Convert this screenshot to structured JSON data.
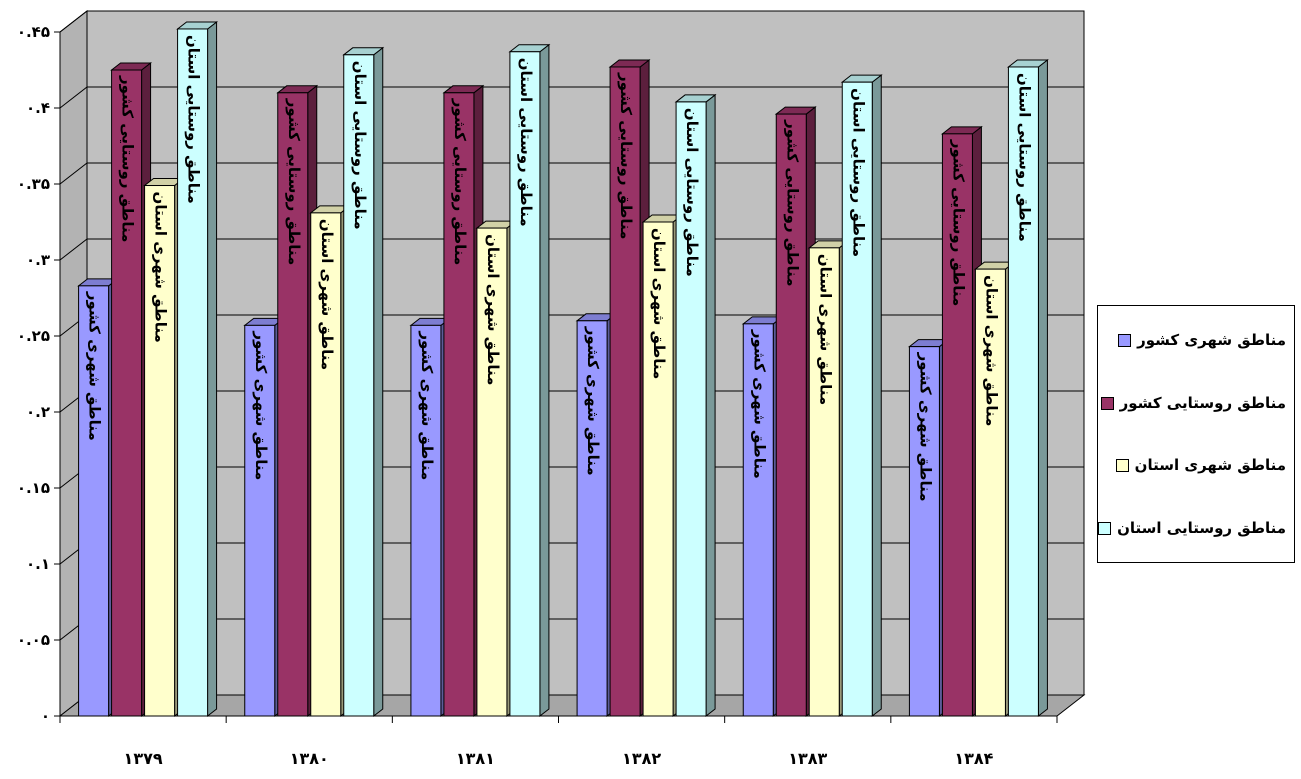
{
  "chart_data": {
    "type": "bar",
    "title": "",
    "xlabel": "",
    "ylabel": "",
    "categories": [
      "۱۳۷۹",
      "۱۳۸۰",
      "۱۳۸۱",
      "۱۳۸۲",
      "۱۳۸۳",
      "۱۳۸۴"
    ],
    "ylim": [
      0,
      0.45
    ],
    "yticks": [
      0,
      0.05,
      0.1,
      0.15,
      0.2,
      0.25,
      0.3,
      0.35,
      0.4,
      0.45
    ],
    "ytick_labels": [
      "۰",
      "۰.۰۵",
      "۰.۱",
      "۰.۱۵",
      "۰.۲",
      "۰.۲۵",
      "۰.۳",
      "۰.۳۵",
      "۰.۴",
      "۰.۴۵"
    ],
    "grid": true,
    "legend_position": "right",
    "series": [
      {
        "name": "مناطق شهری کشور",
        "color": "#9999FF",
        "values": [
          0.283,
          0.257,
          0.257,
          0.26,
          0.258,
          0.243
        ]
      },
      {
        "name": "مناطق روستایی کشور",
        "color": "#993366",
        "values": [
          0.425,
          0.41,
          0.41,
          0.427,
          0.396,
          0.383
        ]
      },
      {
        "name": "مناطق شهری استان",
        "color": "#FFFFCC",
        "values": [
          0.349,
          0.331,
          0.321,
          0.325,
          0.308,
          0.294
        ]
      },
      {
        "name": "مناطق روستایی استان",
        "color": "#CCFFFF",
        "values": [
          0.452,
          0.435,
          0.437,
          0.404,
          0.417,
          0.427
        ]
      }
    ]
  }
}
